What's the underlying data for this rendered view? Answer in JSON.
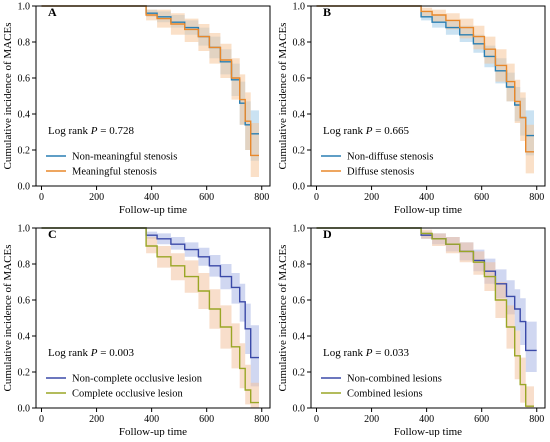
{
  "figure": {
    "panels": [
      "A",
      "B",
      "C",
      "D"
    ]
  },
  "chart_data": [
    {
      "panel": "A",
      "type": "line",
      "xlabel": "Follow-up time",
      "ylabel": "Cumulative incidence of  MACEs",
      "xticks": [
        0,
        200,
        400,
        600,
        800
      ],
      "yticks": [
        0.0,
        0.2,
        0.4,
        0.6,
        0.8,
        1.0
      ],
      "xlim": [
        -20,
        830
      ],
      "ylim": [
        0.0,
        1.0
      ],
      "annotation": "Log rank",
      "annotation_p": "P",
      "annotation_value": " = 0.728",
      "legend_placement": "bottom-left",
      "series": [
        {
          "name": "Non-meaningful stenosis",
          "color": "#2a7fb3",
          "band": "#9fcbe8",
          "x": [
            0,
            330,
            380,
            420,
            470,
            520,
            570,
            610,
            650,
            690,
            720,
            740,
            760,
            790
          ],
          "y": [
            1.0,
            1.0,
            0.96,
            0.94,
            0.91,
            0.88,
            0.83,
            0.77,
            0.69,
            0.59,
            0.46,
            0.34,
            0.29,
            0.29
          ],
          "lo": [
            1.0,
            1.0,
            0.94,
            0.91,
            0.88,
            0.84,
            0.78,
            0.71,
            0.62,
            0.5,
            0.34,
            0.2,
            0.14,
            0.14
          ],
          "hi": [
            1.0,
            1.0,
            0.98,
            0.97,
            0.95,
            0.92,
            0.88,
            0.83,
            0.76,
            0.68,
            0.58,
            0.47,
            0.42,
            0.42
          ]
        },
        {
          "name": "Meaningful stenosis",
          "color": "#e8882b",
          "band": "#f6c79a",
          "x": [
            0,
            330,
            380,
            420,
            470,
            520,
            570,
            610,
            650,
            690,
            720,
            740,
            760,
            790
          ],
          "y": [
            1.0,
            1.0,
            0.95,
            0.93,
            0.9,
            0.87,
            0.83,
            0.77,
            0.7,
            0.6,
            0.48,
            0.36,
            0.17,
            0.17
          ],
          "lo": [
            1.0,
            1.0,
            0.92,
            0.88,
            0.84,
            0.8,
            0.75,
            0.68,
            0.6,
            0.48,
            0.34,
            0.2,
            0.05,
            0.05
          ],
          "hi": [
            1.0,
            1.0,
            0.98,
            0.98,
            0.96,
            0.93,
            0.9,
            0.85,
            0.79,
            0.71,
            0.62,
            0.52,
            0.35,
            0.35
          ]
        }
      ]
    },
    {
      "panel": "B",
      "type": "line",
      "xlabel": "Follow-up time",
      "ylabel": "Cumulative incidence of  MACEs",
      "xticks": [
        0,
        200,
        400,
        600,
        800
      ],
      "yticks": [
        0.0,
        0.2,
        0.4,
        0.6,
        0.8,
        1.0
      ],
      "xlim": [
        -20,
        830
      ],
      "ylim": [
        0.0,
        1.0
      ],
      "annotation": "Log rank",
      "annotation_p": "P",
      "annotation_value": " = 0.665",
      "legend_placement": "bottom-left",
      "series": [
        {
          "name": "Non-diffuse stenosis",
          "color": "#2a7fb3",
          "band": "#9fcbe8",
          "x": [
            0,
            330,
            380,
            420,
            470,
            520,
            570,
            610,
            650,
            690,
            720,
            740,
            760,
            790
          ],
          "y": [
            1.0,
            1.0,
            0.94,
            0.91,
            0.88,
            0.84,
            0.79,
            0.72,
            0.64,
            0.55,
            0.45,
            0.38,
            0.28,
            0.28
          ],
          "lo": [
            1.0,
            1.0,
            0.92,
            0.88,
            0.84,
            0.8,
            0.74,
            0.66,
            0.57,
            0.47,
            0.36,
            0.28,
            0.17,
            0.17
          ],
          "hi": [
            1.0,
            1.0,
            0.97,
            0.95,
            0.92,
            0.89,
            0.84,
            0.78,
            0.71,
            0.63,
            0.55,
            0.49,
            0.42,
            0.42
          ]
        },
        {
          "name": "Diffuse stenosis",
          "color": "#e8882b",
          "band": "#f6c79a",
          "x": [
            0,
            330,
            380,
            420,
            470,
            520,
            570,
            610,
            650,
            690,
            720,
            740,
            760,
            790
          ],
          "y": [
            1.0,
            1.0,
            0.97,
            0.95,
            0.92,
            0.88,
            0.83,
            0.76,
            0.67,
            0.58,
            0.47,
            0.38,
            0.19,
            0.19
          ],
          "lo": [
            1.0,
            1.0,
            0.94,
            0.91,
            0.87,
            0.82,
            0.76,
            0.68,
            0.58,
            0.47,
            0.35,
            0.25,
            0.07,
            0.07
          ],
          "hi": [
            1.0,
            1.0,
            0.99,
            0.98,
            0.96,
            0.93,
            0.89,
            0.83,
            0.76,
            0.68,
            0.59,
            0.52,
            0.34,
            0.34
          ]
        }
      ]
    },
    {
      "panel": "C",
      "type": "line",
      "xlabel": "Follow-up time",
      "ylabel": "Cumulative incidence of  MACEs",
      "xticks": [
        0,
        200,
        400,
        600,
        800
      ],
      "yticks": [
        0.0,
        0.2,
        0.4,
        0.6,
        0.8,
        1.0
      ],
      "xlim": [
        -20,
        830
      ],
      "ylim": [
        0.0,
        1.0
      ],
      "annotation": "Log rank",
      "annotation_p": "P",
      "annotation_value": " = 0.003",
      "legend_placement": "bottom-left",
      "series": [
        {
          "name": "Non-complete occlusive lesion",
          "color": "#3b4aa8",
          "band": "#a9b6e6",
          "x": [
            0,
            330,
            380,
            420,
            470,
            520,
            570,
            610,
            650,
            690,
            720,
            740,
            760,
            790
          ],
          "y": [
            1.0,
            1.0,
            0.96,
            0.94,
            0.91,
            0.88,
            0.84,
            0.79,
            0.73,
            0.67,
            0.59,
            0.44,
            0.28,
            0.28
          ],
          "lo": [
            1.0,
            1.0,
            0.94,
            0.91,
            0.88,
            0.84,
            0.79,
            0.73,
            0.66,
            0.58,
            0.48,
            0.3,
            0.12,
            0.12
          ],
          "hi": [
            1.0,
            1.0,
            0.98,
            0.97,
            0.95,
            0.92,
            0.89,
            0.85,
            0.8,
            0.75,
            0.69,
            0.58,
            0.46,
            0.46
          ]
        },
        {
          "name": "Complete occlusive lesion",
          "color": "#9aa626",
          "band": "#f2c3a0",
          "x": [
            0,
            330,
            380,
            420,
            470,
            520,
            570,
            610,
            650,
            690,
            720,
            740,
            760,
            790
          ],
          "y": [
            1.0,
            1.0,
            0.9,
            0.84,
            0.79,
            0.73,
            0.65,
            0.55,
            0.45,
            0.34,
            0.22,
            0.1,
            0.03,
            0.03
          ],
          "lo": [
            1.0,
            1.0,
            0.86,
            0.78,
            0.71,
            0.64,
            0.55,
            0.44,
            0.33,
            0.22,
            0.11,
            0.02,
            0.0,
            0.0
          ],
          "hi": [
            1.0,
            1.0,
            0.95,
            0.9,
            0.86,
            0.82,
            0.75,
            0.66,
            0.57,
            0.47,
            0.36,
            0.24,
            0.14,
            0.14
          ]
        }
      ]
    },
    {
      "panel": "D",
      "type": "line",
      "xlabel": "Follow-up time",
      "ylabel": "Cumulative incidence of  MACEs",
      "xticks": [
        0,
        200,
        400,
        600,
        800
      ],
      "yticks": [
        0.0,
        0.2,
        0.4,
        0.6,
        0.8,
        1.0
      ],
      "xlim": [
        -20,
        830
      ],
      "ylim": [
        0.0,
        1.0
      ],
      "annotation": "Log rank",
      "annotation_p": "P",
      "annotation_value": " = 0.033",
      "legend_placement": "bottom-left",
      "series": [
        {
          "name": "Non-combined lesions",
          "color": "#3b4aa8",
          "band": "#a9b6e6",
          "x": [
            0,
            330,
            380,
            420,
            470,
            520,
            570,
            610,
            650,
            690,
            720,
            740,
            760,
            800
          ],
          "y": [
            1.0,
            1.0,
            0.96,
            0.94,
            0.91,
            0.87,
            0.82,
            0.76,
            0.69,
            0.62,
            0.55,
            0.48,
            0.32,
            0.32
          ],
          "lo": [
            1.0,
            1.0,
            0.94,
            0.91,
            0.87,
            0.82,
            0.76,
            0.69,
            0.61,
            0.52,
            0.43,
            0.35,
            0.2,
            0.2
          ],
          "hi": [
            1.0,
            1.0,
            0.98,
            0.97,
            0.95,
            0.92,
            0.88,
            0.83,
            0.77,
            0.71,
            0.66,
            0.61,
            0.48,
            0.48
          ]
        },
        {
          "name": "Combined lesions",
          "color": "#9aa626",
          "band": "#f2c3a0",
          "x": [
            0,
            330,
            380,
            420,
            470,
            520,
            570,
            610,
            650,
            690,
            720,
            740,
            760,
            790
          ],
          "y": [
            1.0,
            1.0,
            0.97,
            0.94,
            0.91,
            0.87,
            0.81,
            0.73,
            0.6,
            0.45,
            0.29,
            0.13,
            0.01,
            0.01
          ],
          "lo": [
            1.0,
            1.0,
            0.94,
            0.9,
            0.86,
            0.81,
            0.74,
            0.65,
            0.5,
            0.33,
            0.16,
            0.03,
            0.0,
            0.0
          ],
          "hi": [
            1.0,
            1.0,
            0.99,
            0.97,
            0.95,
            0.92,
            0.87,
            0.81,
            0.7,
            0.57,
            0.43,
            0.28,
            0.12,
            0.12
          ]
        }
      ]
    }
  ]
}
